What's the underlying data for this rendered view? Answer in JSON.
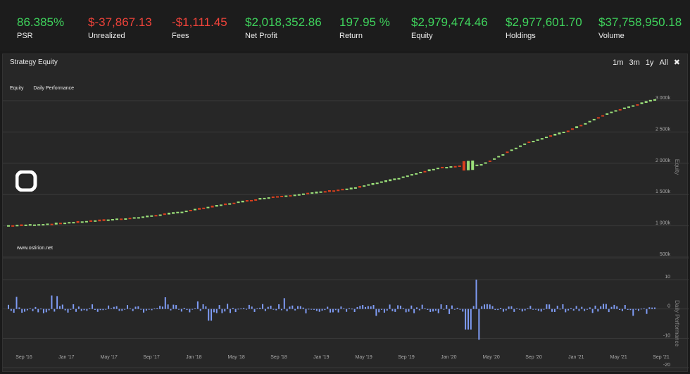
{
  "stats": [
    {
      "value": "86.385%",
      "label": "PSR",
      "tone": "pos"
    },
    {
      "value": "$-37,867.13",
      "label": "Unrealized",
      "tone": "neg"
    },
    {
      "value": "-$1,111.45",
      "label": "Fees",
      "tone": "neg"
    },
    {
      "value": "$2,018,352.86",
      "label": "Net Profit",
      "tone": "pos"
    },
    {
      "value": "197.95 %",
      "label": "Return",
      "tone": "pos"
    },
    {
      "value": "$2,979,474.46",
      "label": "Equity",
      "tone": "pos"
    },
    {
      "value": "$2,977,601.70",
      "label": "Holdings",
      "tone": "pos"
    },
    {
      "value": "$37,758,950.18",
      "label": "Volume",
      "tone": "pos"
    }
  ],
  "panel": {
    "title": "Strategy Equity",
    "ranges": [
      "1m",
      "3m",
      "1y",
      "All"
    ],
    "close_icon": "close-icon",
    "legend": [
      "Equity",
      "Daily Performance"
    ],
    "watermark": "www.ostirion.net",
    "logo_icon": "ostirion-logo"
  },
  "colors": {
    "up": "#9be07a",
    "down": "#d9401e",
    "bar": "#7f9cf5",
    "grid": "#3a3a3a"
  },
  "chart_data": [
    {
      "type": "candlestick",
      "title": "",
      "ylabel": "Equity",
      "ylim": [
        500000,
        3000000
      ],
      "yticks": [
        "3 000k",
        "2 500k",
        "2 000k",
        "1 500k",
        "1 000k",
        "500k"
      ],
      "x": [
        "Sep '16",
        "Jan '17",
        "May '17",
        "Sep '17",
        "Jan '18",
        "May '18",
        "Sep '18",
        "Jan '19",
        "May '19",
        "Sep '19",
        "Jan '20",
        "May '20",
        "Sep '20",
        "Jan '21",
        "May '21",
        "Sep '21"
      ],
      "series": [
        {
          "values": [
            1000000,
            1030000,
            1080000,
            1130000,
            1220000,
            1340000,
            1450000,
            1520000,
            1600000,
            1750000,
            1930000,
            1980000,
            2320000,
            2520000,
            2820000,
            3020000
          ]
        }
      ]
    },
    {
      "type": "bar",
      "title": "",
      "ylabel": "Daily Performance",
      "ylim": [
        -20,
        10
      ],
      "yticks": [
        "10",
        "0",
        "-10",
        "-20"
      ],
      "notes": "many small daily return bars near 0, spikes to about +10 and -12 around Mar '20"
    }
  ]
}
